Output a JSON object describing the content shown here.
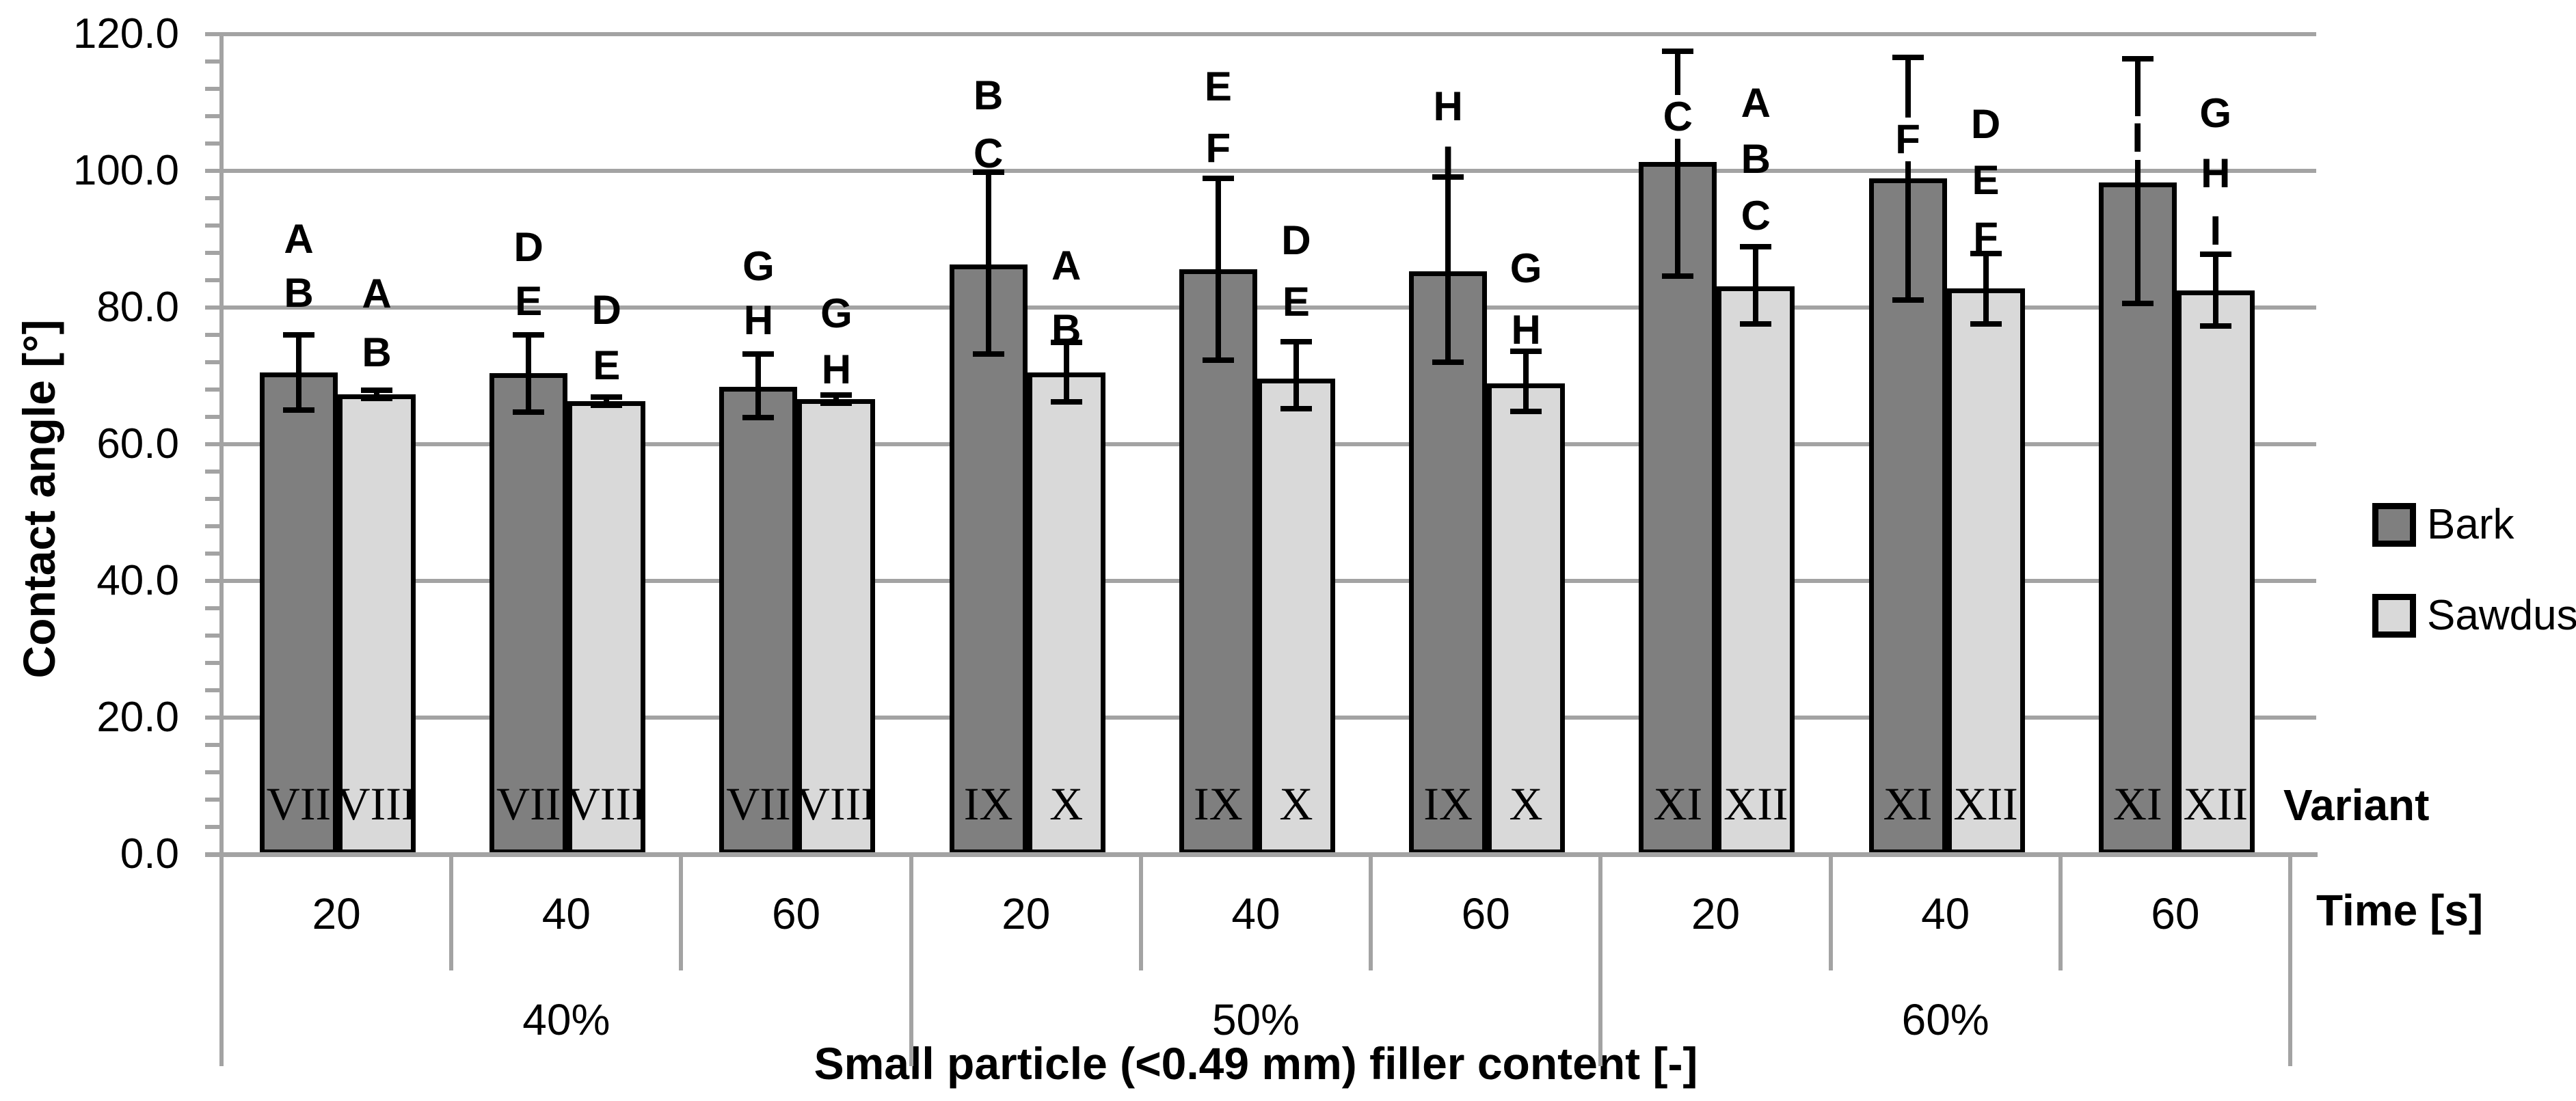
{
  "chart_data": {
    "type": "bar",
    "ylabel": "Contact angle [°]",
    "xlabel": "Small particle (<0.49 mm) filler content [-]",
    "variant_label": "Variant",
    "time_label": "Time [s]",
    "ylim": [
      0,
      120
    ],
    "ytick_step": 20,
    "minor_tick_step": 4,
    "ytick_labels": [
      "0.0",
      "20.0",
      "40.0",
      "60.0",
      "80.0",
      "100.0",
      "120.0"
    ],
    "grid": true,
    "legend_position": "right",
    "legend": [
      {
        "name": "Bark",
        "color": "#7f7f7f"
      },
      {
        "name": "Sawdust",
        "color": "#d9d9d9"
      }
    ],
    "colors": {
      "grid": "#a3a3a3",
      "axis": "#8c8c8c",
      "bar_border": "#000000"
    },
    "sections": [
      {
        "label": "40%",
        "times": [
          {
            "time": "20",
            "bars": [
              {
                "series": "Bark",
                "variant": "VII",
                "value": 70.5,
                "err_low": 65.0,
                "err_high": 76.0,
                "letters": [
                  {
                    "t": "A",
                    "v": 90.0
                  },
                  {
                    "t": "B",
                    "v": 82.1
                  }
                ]
              },
              {
                "series": "Sawdust",
                "variant": "VIII",
                "value": 67.3,
                "err_low": 66.7,
                "err_high": 67.9,
                "letters": [
                  {
                    "t": "A",
                    "v": 82.0
                  },
                  {
                    "t": "B",
                    "v": 73.4
                  }
                ]
              }
            ]
          },
          {
            "time": "40",
            "bars": [
              {
                "series": "Bark",
                "variant": "VII",
                "value": 70.4,
                "err_low": 64.7,
                "err_high": 76.0,
                "letters": [
                  {
                    "t": "D",
                    "v": 88.8
                  },
                  {
                    "t": "E",
                    "v": 80.9
                  }
                ]
              },
              {
                "series": "Sawdust",
                "variant": "VIII",
                "value": 66.3,
                "err_low": 65.7,
                "err_high": 66.9,
                "letters": [
                  {
                    "t": "D",
                    "v": 79.6
                  },
                  {
                    "t": "E",
                    "v": 71.5
                  }
                ]
              }
            ]
          },
          {
            "time": "60",
            "bars": [
              {
                "series": "Bark",
                "variant": "VII",
                "value": 68.4,
                "err_low": 63.9,
                "err_high": 73.2,
                "letters": [
                  {
                    "t": "G",
                    "v": 86.0
                  },
                  {
                    "t": "H",
                    "v": 78.1
                  }
                ]
              },
              {
                "series": "Sawdust",
                "variant": "VIII",
                "value": 66.6,
                "err_low": 66.0,
                "err_high": 67.2,
                "letters": [
                  {
                    "t": "G",
                    "v": 79.1
                  },
                  {
                    "t": "H",
                    "v": 70.9
                  }
                ]
              }
            ]
          }
        ]
      },
      {
        "label": "50%",
        "times": [
          {
            "time": "20",
            "bars": [
              {
                "series": "Bark",
                "variant": "IX",
                "value": 86.3,
                "err_low": 73.2,
                "err_high": 99.8,
                "letters": [
                  {
                    "t": "B",
                    "v": 111.0
                  },
                  {
                    "t": "C",
                    "v": 102.5
                  }
                ]
              },
              {
                "series": "Sawdust",
                "variant": "X",
                "value": 70.5,
                "err_low": 66.2,
                "err_high": 74.9,
                "letters": [
                  {
                    "t": "A",
                    "v": 86.1
                  },
                  {
                    "t": "B",
                    "v": 76.8
                  }
                ]
              }
            ]
          },
          {
            "time": "40",
            "bars": [
              {
                "series": "Bark",
                "variant": "IX",
                "value": 85.6,
                "err_low": 72.3,
                "err_high": 98.9,
                "letters": [
                  {
                    "t": "E",
                    "v": 112.3
                  },
                  {
                    "t": "F",
                    "v": 103.3
                  }
                ]
              },
              {
                "series": "Sawdust",
                "variant": "X",
                "value": 69.6,
                "err_low": 65.2,
                "err_high": 75.0,
                "letters": [
                  {
                    "t": "D",
                    "v": 89.8
                  },
                  {
                    "t": "E",
                    "v": 80.8
                  }
                ]
              }
            ]
          },
          {
            "time": "60",
            "bars": [
              {
                "series": "Bark",
                "variant": "IX",
                "value": 85.3,
                "err_low": 72.0,
                "err_high": 99.1,
                "letters": [
                  {
                    "t": "H",
                    "v": 109.4
                  },
                  {
                    "t": "I",
                    "v": 101.4
                  }
                ]
              },
              {
                "series": "Sawdust",
                "variant": "X",
                "value": 68.9,
                "err_low": 64.8,
                "err_high": 73.6,
                "letters": [
                  {
                    "t": "G",
                    "v": 85.7
                  },
                  {
                    "t": "H",
                    "v": 76.7
                  }
                ]
              }
            ]
          }
        ]
      },
      {
        "label": "60%",
        "times": [
          {
            "time": "20",
            "bars": [
              {
                "series": "Bark",
                "variant": "XI",
                "value": 101.3,
                "err_low": 84.6,
                "err_high": 117.5,
                "letters": [
                  {
                    "t": "C",
                    "v": 107.9,
                    "gap": true
                  }
                ]
              },
              {
                "series": "Sawdust",
                "variant": "XII",
                "value": 83.1,
                "err_low": 77.6,
                "err_high": 88.9,
                "letters": [
                  {
                    "t": "A",
                    "v": 109.9
                  },
                  {
                    "t": "B",
                    "v": 101.7
                  },
                  {
                    "t": "C",
                    "v": 93.4
                  }
                ]
              }
            ]
          },
          {
            "time": "40",
            "bars": [
              {
                "series": "Bark",
                "variant": "XI",
                "value": 98.9,
                "err_low": 81.1,
                "err_high": 116.6,
                "letters": [
                  {
                    "t": "F",
                    "v": 104.6,
                    "gap": true
                  }
                ]
              },
              {
                "series": "Sawdust",
                "variant": "XII",
                "value": 82.8,
                "err_low": 77.6,
                "err_high": 87.9,
                "letters": [
                  {
                    "t": "D",
                    "v": 106.8
                  },
                  {
                    "t": "E",
                    "v": 98.6
                  },
                  {
                    "t": "F",
                    "v": 90.3
                  }
                ]
              }
            ]
          },
          {
            "time": "60",
            "bars": [
              {
                "series": "Bark",
                "variant": "XI",
                "value": 98.3,
                "err_low": 80.6,
                "err_high": 116.4,
                "letters": [
                  {
                    "t": "I",
                    "v": 104.8,
                    "gap": true
                  }
                ]
              },
              {
                "series": "Sawdust",
                "variant": "XII",
                "value": 82.5,
                "err_low": 77.3,
                "err_high": 87.8,
                "letters": [
                  {
                    "t": "G",
                    "v": 108.4
                  },
                  {
                    "t": "H",
                    "v": 99.6
                  },
                  {
                    "t": "I",
                    "v": 91.2
                  }
                ]
              }
            ]
          }
        ]
      }
    ]
  }
}
